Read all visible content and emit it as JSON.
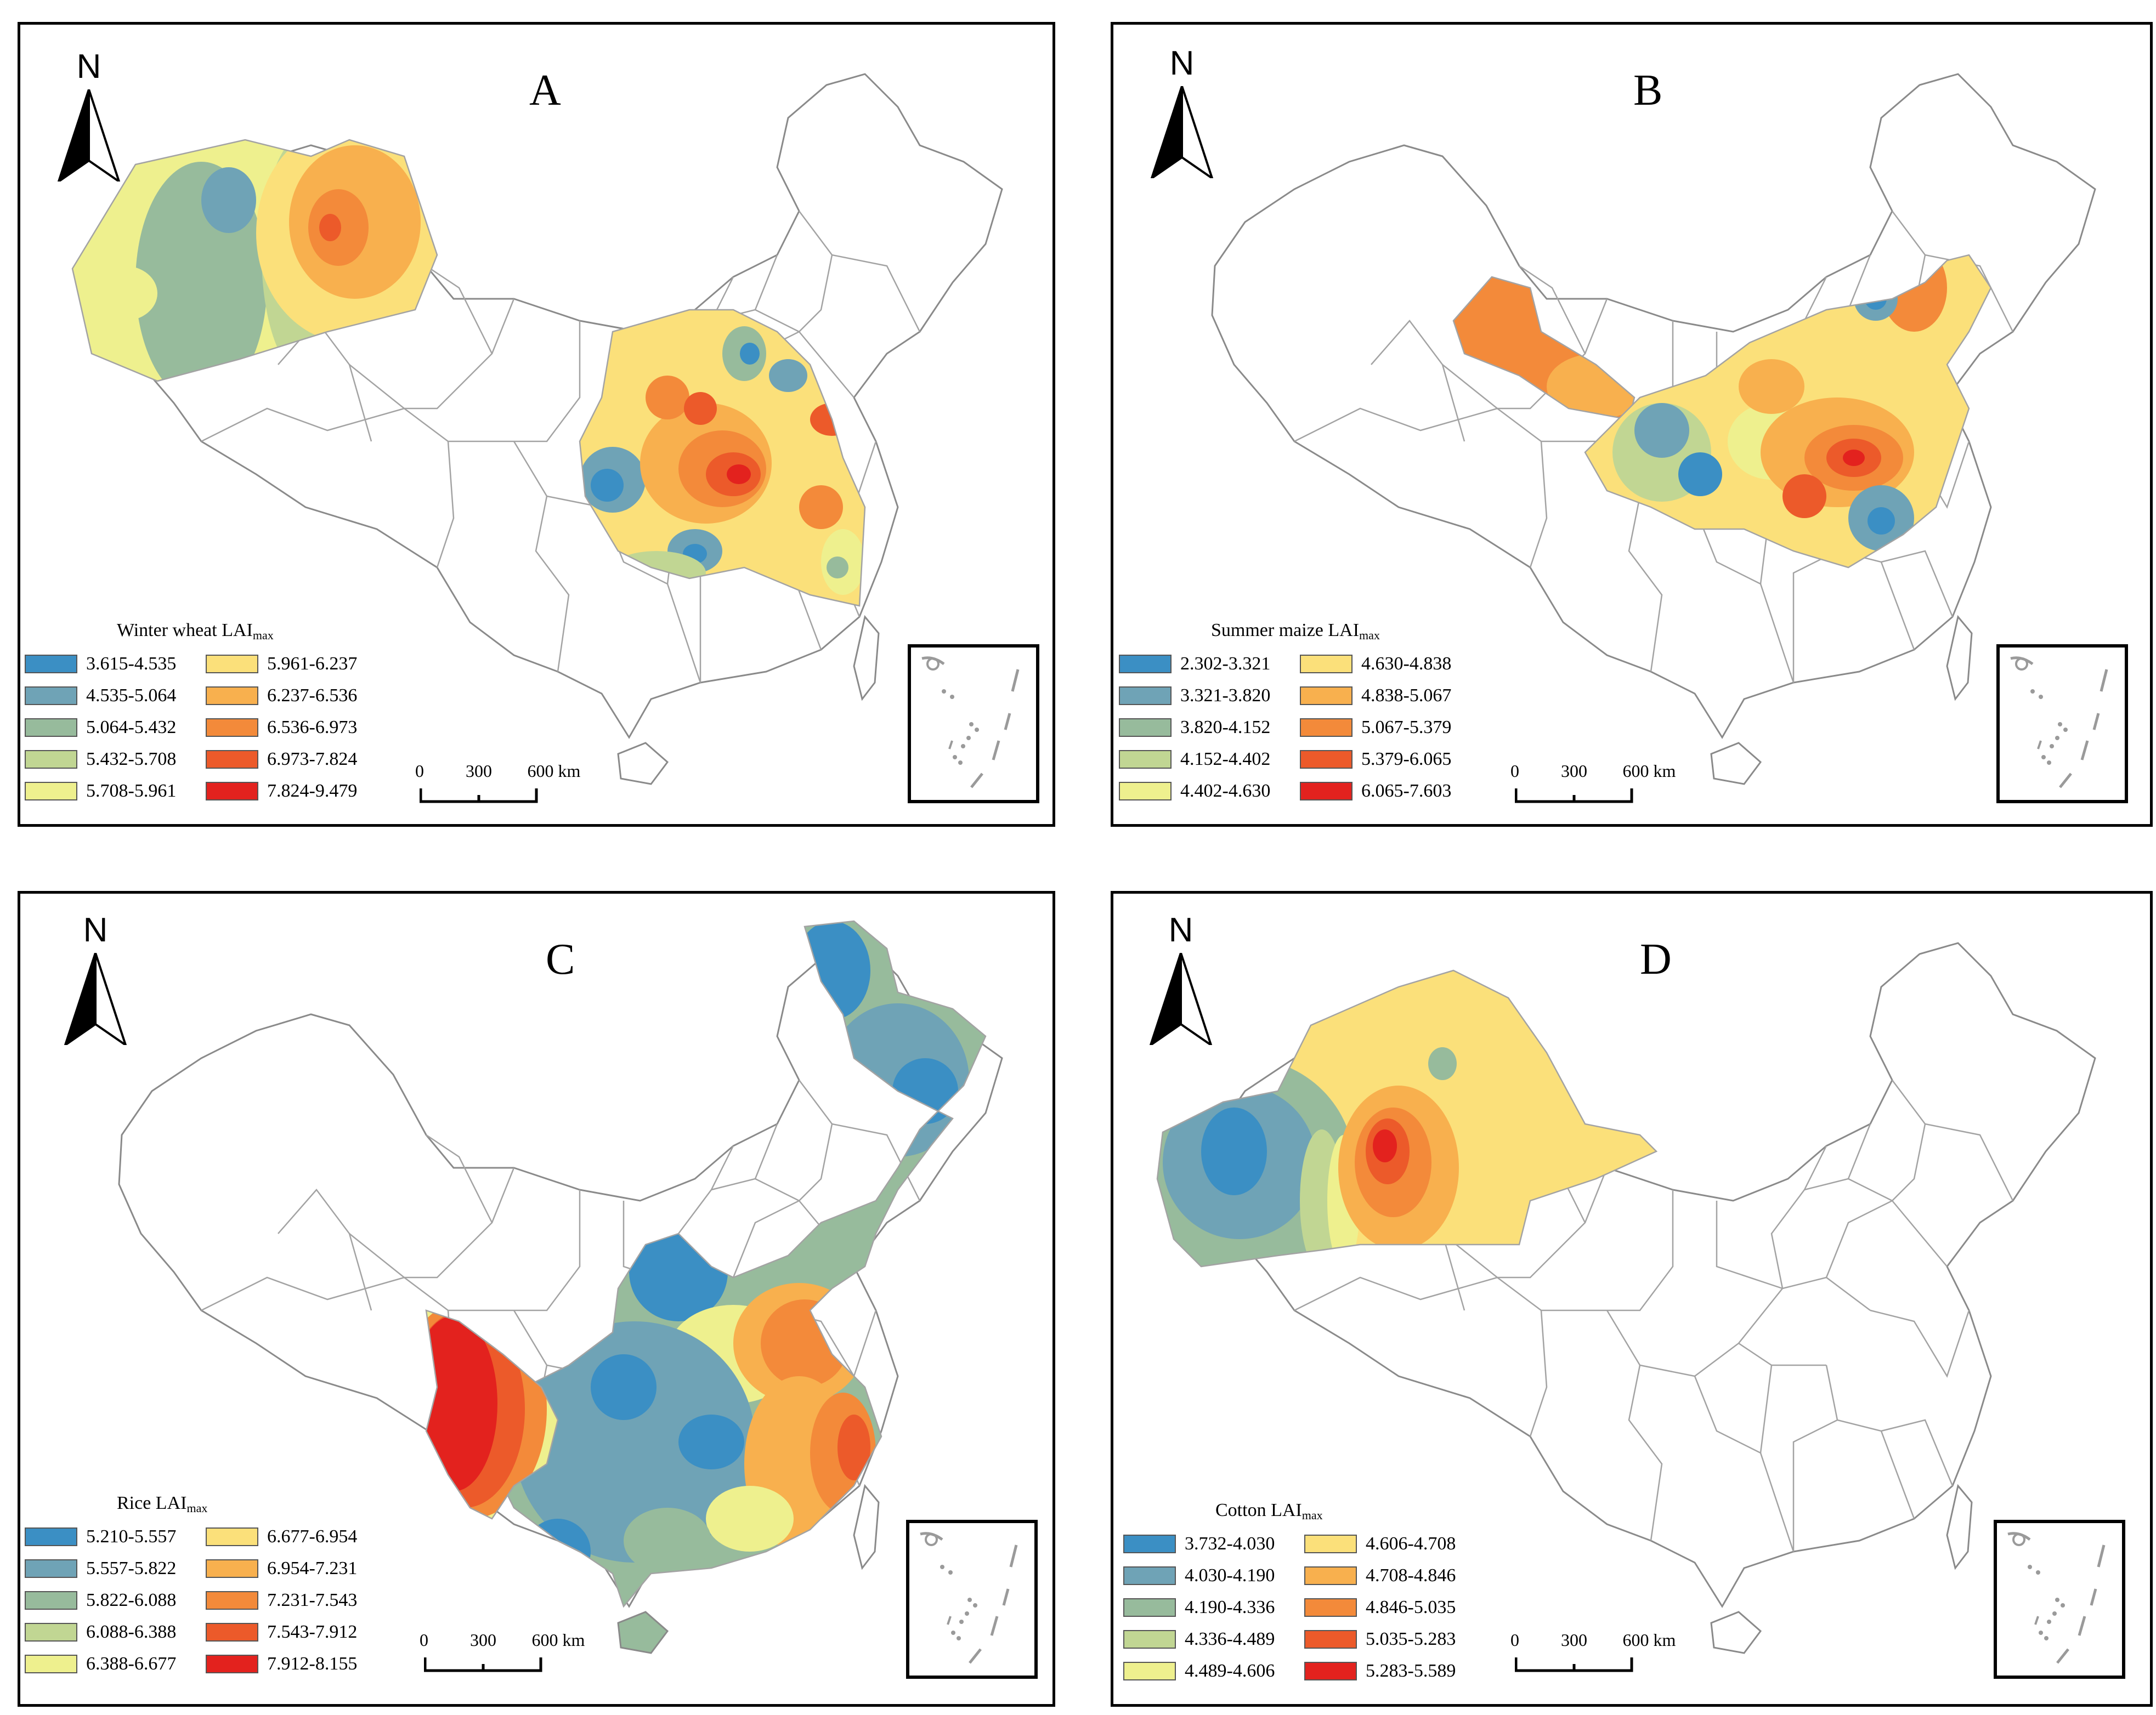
{
  "figure": {
    "north_label": "N",
    "scale_labels": [
      "0",
      "300",
      "600 km"
    ]
  },
  "colors": {
    "boundary": "#a3a3a3",
    "outline": "#8a8a8a"
  },
  "panels": [
    {
      "letter": "A",
      "legend_title": "Winter wheat  LAI",
      "legend_sub": "max",
      "legend": [
        {
          "label": "3.615-4.535",
          "color": "#3b8fc4"
        },
        {
          "label": "4.535-5.064",
          "color": "#6fa3b6"
        },
        {
          "label": "5.064-5.432",
          "color": "#97bb9c"
        },
        {
          "label": "5.432-5.708",
          "color": "#c1d693"
        },
        {
          "label": "5.708-5.961",
          "color": "#eef08e"
        },
        {
          "label": "5.961-6.237",
          "color": "#fbe07a"
        },
        {
          "label": "6.237-6.536",
          "color": "#f8b04e"
        },
        {
          "label": "6.536-6.973",
          "color": "#f38a3a"
        },
        {
          "label": "6.973-7.824",
          "color": "#ec5a2a"
        },
        {
          "label": "7.824-9.479",
          "color": "#e3221e"
        }
      ]
    },
    {
      "letter": "B",
      "legend_title": "Summer maize  LAI",
      "legend_sub": "max",
      "legend": [
        {
          "label": "2.302-3.321",
          "color": "#3b8fc4"
        },
        {
          "label": "3.321-3.820",
          "color": "#6fa3b6"
        },
        {
          "label": "3.820-4.152",
          "color": "#97bb9c"
        },
        {
          "label": "4.152-4.402",
          "color": "#c1d693"
        },
        {
          "label": "4.402-4.630",
          "color": "#eef08e"
        },
        {
          "label": "4.630-4.838",
          "color": "#fbe07a"
        },
        {
          "label": "4.838-5.067",
          "color": "#f8b04e"
        },
        {
          "label": "5.067-5.379",
          "color": "#f38a3a"
        },
        {
          "label": "5.379-6.065",
          "color": "#ec5a2a"
        },
        {
          "label": "6.065-7.603",
          "color": "#e3221e"
        }
      ]
    },
    {
      "letter": "C",
      "legend_title": "Rice  LAI",
      "legend_sub": "max",
      "legend": [
        {
          "label": "5.210-5.557",
          "color": "#3b8fc4"
        },
        {
          "label": "5.557-5.822",
          "color": "#6fa3b6"
        },
        {
          "label": "5.822-6.088",
          "color": "#97bb9c"
        },
        {
          "label": "6.088-6.388",
          "color": "#c1d693"
        },
        {
          "label": "6.388-6.677",
          "color": "#eef08e"
        },
        {
          "label": "6.677-6.954",
          "color": "#fbe07a"
        },
        {
          "label": "6.954-7.231",
          "color": "#f8b04e"
        },
        {
          "label": "7.231-7.543",
          "color": "#f38a3a"
        },
        {
          "label": "7.543-7.912",
          "color": "#ec5a2a"
        },
        {
          "label": "7.912-8.155",
          "color": "#e3221e"
        }
      ]
    },
    {
      "letter": "D",
      "legend_title": "Cotton    LAI",
      "legend_sub": "max",
      "legend": [
        {
          "label": "3.732-4.030",
          "color": "#3b8fc4"
        },
        {
          "label": "4.030-4.190",
          "color": "#6fa3b6"
        },
        {
          "label": "4.190-4.336",
          "color": "#97bb9c"
        },
        {
          "label": "4.336-4.489",
          "color": "#c1d693"
        },
        {
          "label": "4.489-4.606",
          "color": "#eef08e"
        },
        {
          "label": "4.606-4.708",
          "color": "#fbe07a"
        },
        {
          "label": "4.708-4.846",
          "color": "#f8b04e"
        },
        {
          "label": "4.846-5.035",
          "color": "#f38a3a"
        },
        {
          "label": "5.035-5.283",
          "color": "#ec5a2a"
        },
        {
          "label": "5.283-5.589",
          "color": "#e3221e"
        }
      ]
    }
  ]
}
